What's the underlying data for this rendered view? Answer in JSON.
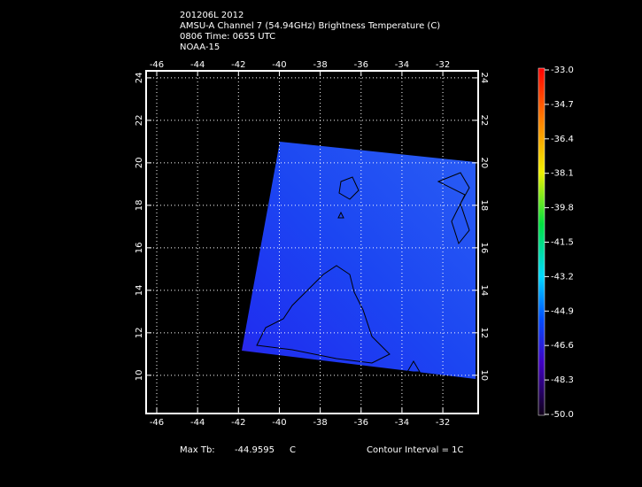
{
  "title": [
    "201206L 2012",
    "AMSU-A Channel 7 (54.94GHz) Brightness Temperature (C)",
    "0806 Time: 0655 UTC",
    "NOAA-15"
  ],
  "map": {
    "xlim": [
      -46.52,
      -30.27
    ],
    "ylim": [
      8.2,
      24.33
    ],
    "xticks": [
      -46,
      -44,
      -42,
      -40,
      -38,
      -36,
      -34,
      -32
    ],
    "yticks": [
      10,
      12,
      14,
      16,
      18,
      20,
      22,
      24
    ],
    "grid": true
  },
  "colorbar": {
    "lim": [
      -50,
      -33
    ],
    "ticks": [
      {
        "value": -33,
        "label": "-33.0"
      },
      {
        "value": -34.7,
        "label": "-34.7"
      },
      {
        "value": -36.4,
        "label": "-36.4"
      },
      {
        "value": -38.1,
        "label": "-38.1"
      },
      {
        "value": -39.8,
        "label": "-39.8"
      },
      {
        "value": -41.5,
        "label": "-41.5"
      },
      {
        "value": -43.2,
        "label": "-43.2"
      },
      {
        "value": -44.9,
        "label": "-44.9"
      },
      {
        "value": -46.6,
        "label": "-46.6"
      },
      {
        "value": -48.3,
        "label": "-48.3"
      },
      {
        "value": -50,
        "label": "-50.0"
      }
    ]
  },
  "footer": {
    "max_label": "Max Tb:",
    "max_value": -44.9595,
    "max_unit": "C",
    "contour": "Contour Interval = 1C"
  }
}
